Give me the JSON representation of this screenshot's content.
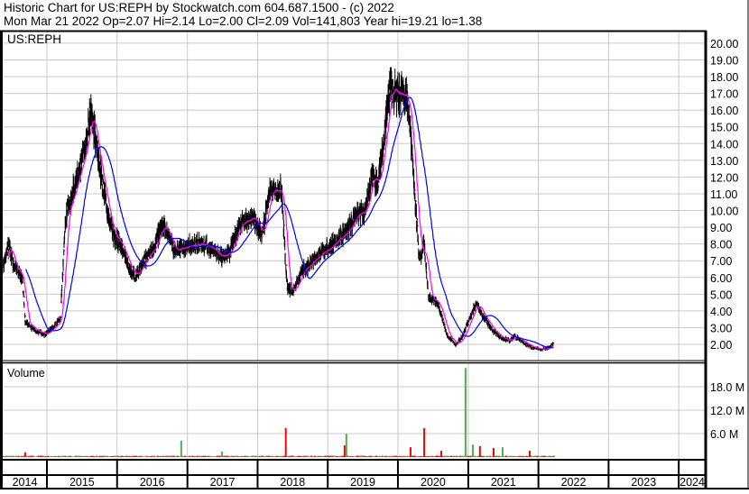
{
  "header": {
    "title": "Historic Chart for US:REPH by Stockwatch.com 604.687.1500 - (c) 2022",
    "quote": "Mon Mar 21 2022  Op=2.07  Hi=2.14  Lo=2.00  Cl=2.09  Vol=141,803  Year hi=19.21  lo=1.38"
  },
  "chart_data": {
    "type": "line",
    "symbol_label": "US:REPH",
    "volume_label": "Volume",
    "price_axis": {
      "range": [
        1,
        20.5
      ],
      "ticks": [
        "2.00",
        "3.00",
        "4.00",
        "5.00",
        "6.00",
        "7.00",
        "8.00",
        "9.00",
        "10.00",
        "11.00",
        "12.00",
        "13.00",
        "14.00",
        "15.00",
        "16.00",
        "17.00",
        "18.00",
        "19.00",
        "20.00"
      ]
    },
    "volume_axis": {
      "unit": "M",
      "ticks": [
        {
          "value": 6,
          "label": "6.0 M"
        },
        {
          "value": 12,
          "label": "12.0 M"
        },
        {
          "value": 18,
          "label": "18.0 M"
        }
      ]
    },
    "x_axis_years": [
      "2014",
      "2015",
      "2016",
      "2017",
      "2018",
      "2019",
      "2020",
      "2021",
      "2022",
      "2023",
      "2024"
    ],
    "grid": true,
    "colors": {
      "bars": "#000000",
      "close_marks": "#ff0000",
      "ma_short": "#ff00ff",
      "ma_long": "#0000ff",
      "volume_up": "#4caf50",
      "volume_down": "#ff0000",
      "grid": "#c8c8c8"
    },
    "moving_averages": [
      {
        "color": "#ff00ff"
      },
      {
        "color": "#0000ff"
      }
    ],
    "close_points": [
      [
        "2014-05-10",
        6.1
      ],
      [
        "2014-06-18",
        8.0
      ],
      [
        "2014-07-10",
        6.7
      ],
      [
        "2014-08-26",
        5.9
      ],
      [
        "2014-09-10",
        3.3
      ],
      [
        "2014-11-05",
        2.8
      ],
      [
        "2014-12-22",
        2.6
      ],
      [
        "2015-02-07",
        3.1
      ],
      [
        "2015-03-12",
        3.5
      ],
      [
        "2015-04-05",
        9.1
      ],
      [
        "2015-04-19",
        10.2
      ],
      [
        "2015-05-22",
        11.3
      ],
      [
        "2015-07-22",
        13.7
      ],
      [
        "2015-08-14",
        16.1
      ],
      [
        "2015-09-07",
        14.5
      ],
      [
        "2015-09-30",
        12.9
      ],
      [
        "2015-11-06",
        10.2
      ],
      [
        "2015-12-09",
        8.6
      ],
      [
        "2016-01-25",
        7.8
      ],
      [
        "2016-03-12",
        6.4
      ],
      [
        "2016-04-05",
        6.1
      ],
      [
        "2016-05-22",
        7.0
      ],
      [
        "2016-07-17",
        8.0
      ],
      [
        "2016-08-24",
        9.1
      ],
      [
        "2016-09-16",
        8.7
      ],
      [
        "2016-11-02",
        7.5
      ],
      [
        "2016-12-19",
        7.8
      ],
      [
        "2017-02-04",
        8.0
      ],
      [
        "2017-04-15",
        7.9
      ],
      [
        "2017-06-25",
        7.2
      ],
      [
        "2017-08-11",
        7.5
      ],
      [
        "2017-09-27",
        9.1
      ],
      [
        "2017-12-06",
        9.7
      ],
      [
        "2018-01-22",
        8.5
      ],
      [
        "2018-03-09",
        11.3
      ],
      [
        "2018-05-05",
        11.3
      ],
      [
        "2018-06-03",
        5.4
      ],
      [
        "2018-07-05",
        5.2
      ],
      [
        "2018-08-21",
        6.4
      ],
      [
        "2018-10-30",
        7.2
      ],
      [
        "2019-01-09",
        7.8
      ],
      [
        "2019-02-25",
        8.3
      ],
      [
        "2019-04-13",
        8.8
      ],
      [
        "2019-05-30",
        9.7
      ],
      [
        "2019-07-15",
        9.9
      ],
      [
        "2019-08-18",
        12.1
      ],
      [
        "2019-09-15",
        11.5
      ],
      [
        "2019-10-18",
        14.0
      ],
      [
        "2019-11-20",
        17.2
      ],
      [
        "2019-12-27",
        16.9
      ],
      [
        "2020-02-12",
        16.9
      ],
      [
        "2020-03-06",
        15.0
      ],
      [
        "2020-03-30",
        10.7
      ],
      [
        "2020-04-22",
        7.0
      ],
      [
        "2020-05-16",
        8.0
      ],
      [
        "2020-06-09",
        4.8
      ],
      [
        "2020-07-26",
        4.5
      ],
      [
        "2020-09-10",
        2.6
      ],
      [
        "2020-10-27",
        2.0
      ],
      [
        "2020-11-29",
        2.4
      ],
      [
        "2021-01-06",
        3.5
      ],
      [
        "2021-02-13",
        4.5
      ],
      [
        "2021-03-17",
        3.7
      ],
      [
        "2021-05-03",
        2.9
      ],
      [
        "2021-06-19",
        2.4
      ],
      [
        "2021-08-05",
        2.2
      ],
      [
        "2021-08-29",
        2.5
      ],
      [
        "2021-10-15",
        2.1
      ],
      [
        "2021-12-01",
        1.8
      ],
      [
        "2022-01-17",
        1.7
      ],
      [
        "2022-02-24",
        1.8
      ],
      [
        "2022-03-21",
        2.09
      ]
    ],
    "volume_spikes_millions": [
      [
        "2014-09-05",
        1.2,
        "down"
      ],
      [
        "2016-11-25",
        4.2,
        "up"
      ],
      [
        "2017-06-25",
        1.4,
        "up"
      ],
      [
        "2018-05-23",
        7.4,
        "down"
      ],
      [
        "2019-03-25",
        3.0,
        "down"
      ],
      [
        "2019-04-03",
        6.0,
        "up"
      ],
      [
        "2020-03-02",
        2.5,
        "down"
      ],
      [
        "2020-05-12",
        7.4,
        "down"
      ],
      [
        "2020-08-09",
        1.6,
        "down"
      ],
      [
        "2020-12-13",
        22.8,
        "up"
      ],
      [
        "2021-01-20",
        3.2,
        "up"
      ],
      [
        "2021-02-26",
        2.8,
        "down"
      ],
      [
        "2021-05-08",
        2.3,
        "down"
      ],
      [
        "2021-06-24",
        2.5,
        "up"
      ],
      [
        "2021-11-12",
        1.6,
        "down"
      ]
    ]
  }
}
